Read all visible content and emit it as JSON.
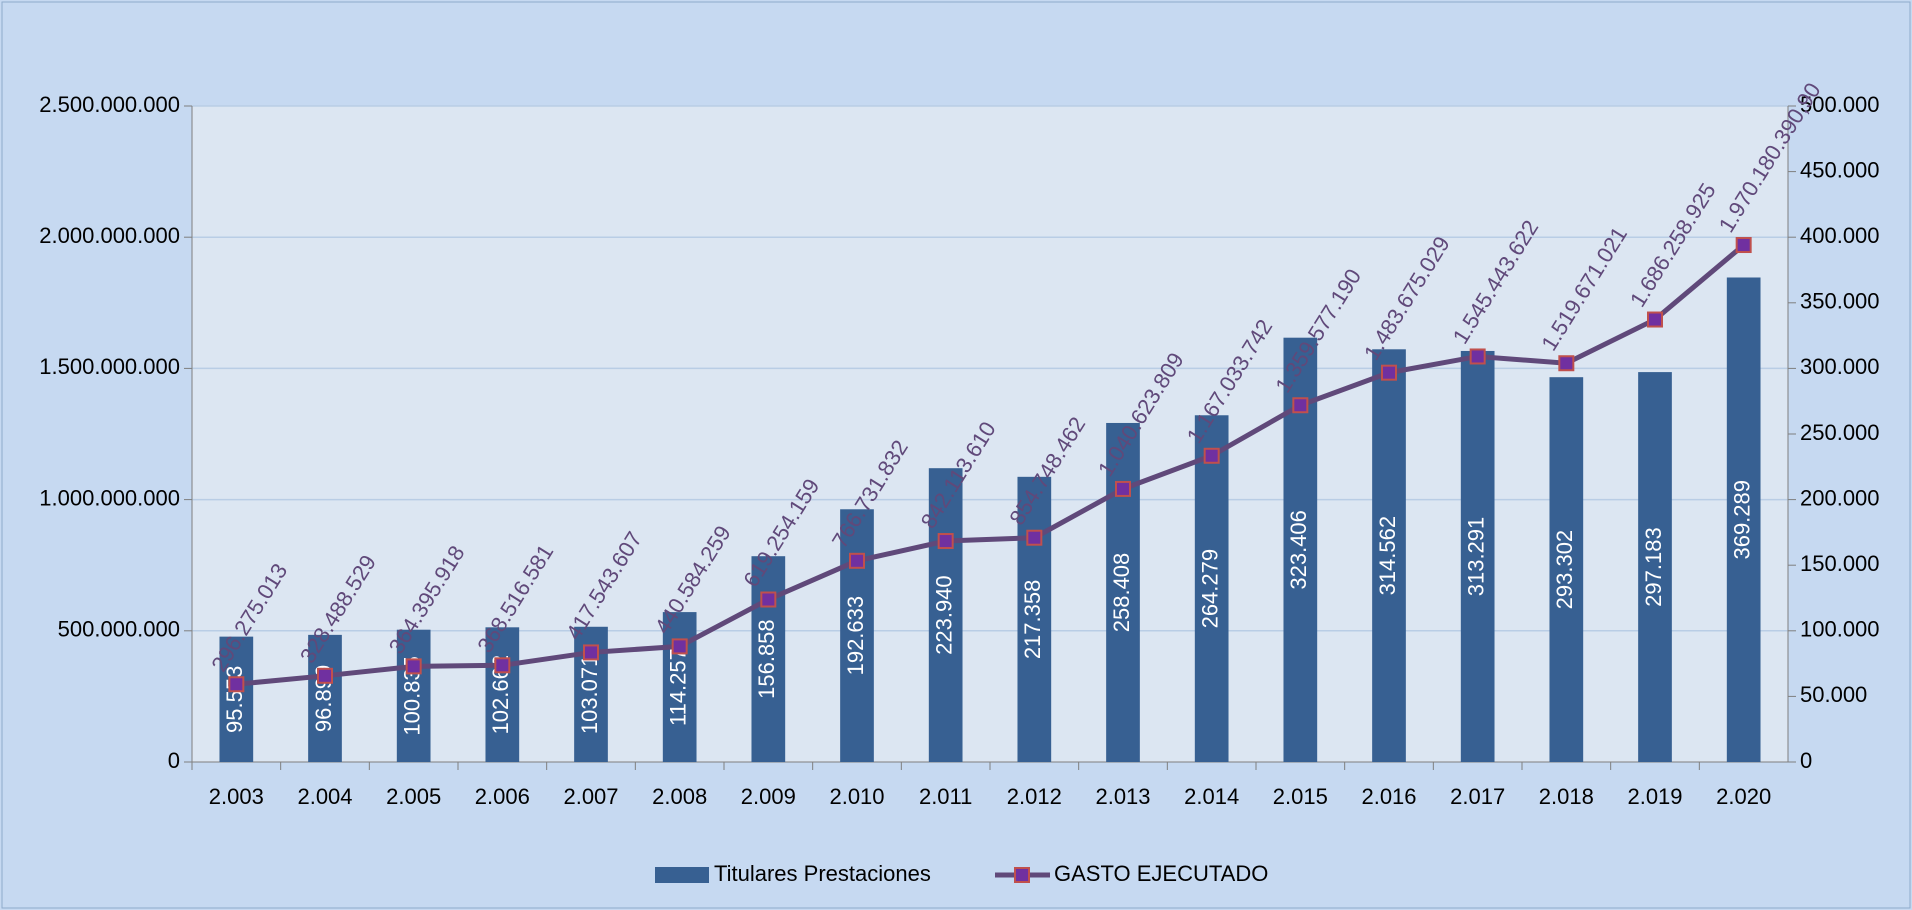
{
  "chart_data": {
    "type": "bar-line",
    "categories": [
      "2.003",
      "2.004",
      "2.005",
      "2.006",
      "2.007",
      "2.008",
      "2.009",
      "2.010",
      "2.011",
      "2.012",
      "2.013",
      "2.014",
      "2.015",
      "2.016",
      "2.017",
      "2.018",
      "2.019",
      "2.020"
    ],
    "series": [
      {
        "name": "Titulares Prestaciones",
        "type": "bar",
        "color": "#376092",
        "axis": "y2",
        "values": [
          95553,
          96899,
          100835,
          102662,
          103071,
          114257,
          156858,
          192633,
          223940,
          217358,
          258408,
          264279,
          323406,
          314562,
          313291,
          293302,
          297183,
          369289
        ],
        "value_labels": [
          "95.553",
          "96.899",
          "100.835",
          "102.662",
          "103.071",
          "114.257",
          "156.858",
          "192.633",
          "223.940",
          "217.358",
          "258.408",
          "264.279",
          "323.406",
          "314.562",
          "313.291",
          "293.302",
          "297.183",
          "369.289"
        ]
      },
      {
        "name": "GASTO EJECUTADO",
        "type": "line",
        "color": "#60497a",
        "marker_color": "#7030a0",
        "marker_edge": "#c0504d",
        "values": [
          296275013,
          328488529,
          364395918,
          368516581,
          417543607,
          440584259,
          619254159,
          766731832,
          842113610,
          854748462,
          1040623809,
          1167033742,
          1359577190,
          1483675029,
          1545443622,
          1519671021,
          1686258925,
          1970180390.9
        ],
        "value_labels": [
          "296.275.013",
          "328.488.529",
          "364.395.918",
          "368.516.581",
          "417.543.607",
          "440.584.259",
          "619.254.159",
          "766.731.832",
          "842.113.610",
          "854.748.462",
          "1.040.623.809",
          "1.167.033.742",
          "1.359.577.190",
          "1.483.675.029",
          "1.545.443.622",
          "1.519.671.021",
          "1.686.258.925",
          "1.970.180.390,90"
        ]
      }
    ],
    "ylim": [
      0,
      2500000000
    ],
    "yticks": [
      0,
      {
        "value": 500000000,
        "label": "500.000.000"
      },
      {
        "value": 1000000000,
        "label": "1.000.000.000"
      },
      {
        "value": 1500000000,
        "label": "1.500.000.000"
      },
      {
        "value": 2000000000,
        "label": "2.000.000.000"
      },
      {
        "value": 2500000000,
        "label": "2.500.000.000"
      }
    ],
    "y2lim": [
      0,
      500000
    ],
    "y2ticks": [
      0,
      {
        "value": 50000,
        "label": "50.000"
      },
      {
        "value": 100000,
        "label": "100.000"
      },
      {
        "value": 150000,
        "label": "150.000"
      },
      {
        "value": 200000,
        "label": "200.000"
      },
      {
        "value": 250000,
        "label": "250.000"
      },
      {
        "value": 300000,
        "label": "300.000"
      },
      {
        "value": 350000,
        "label": "350.000"
      },
      {
        "value": 400000,
        "label": "400.000"
      },
      {
        "value": 450000,
        "label": "450.000"
      },
      {
        "value": 500000,
        "label": "500.000"
      }
    ],
    "grid": true,
    "legend": "bottom"
  }
}
